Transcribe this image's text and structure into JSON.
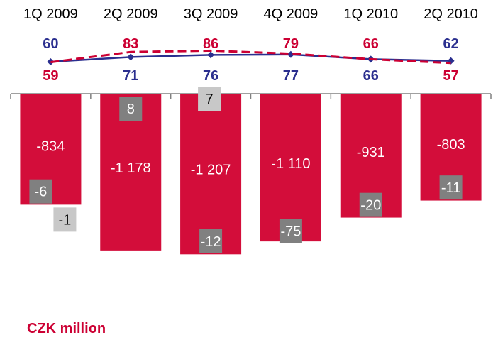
{
  "chart_data": {
    "type": "bar",
    "unit_label": "CZK million",
    "categories": [
      "1Q 2009",
      "2Q 2009",
      "3Q 2009",
      "4Q 2009",
      "1Q 2010",
      "2Q 2010"
    ],
    "main_bars": {
      "values": [
        -834,
        -1178,
        -1207,
        -1110,
        -931,
        -803
      ],
      "labels": [
        "-834",
        "-1 178",
        "-1 207",
        "-1 110",
        "-931",
        "-803"
      ],
      "color": "#d30d3a"
    },
    "small_bars_dark": {
      "values": [
        -6,
        8,
        -12,
        -75,
        -20,
        -11
      ],
      "labels": [
        "-6",
        "8",
        "-12",
        "-75",
        "-20",
        "-11"
      ],
      "color": "#808080"
    },
    "small_bars_light": {
      "values": [
        -1,
        null,
        7,
        null,
        null,
        null
      ],
      "labels": [
        "-1",
        "",
        "7",
        "",
        "",
        ""
      ],
      "color": "#c8c8c8"
    },
    "line_series": [
      {
        "values": [
          60,
          71,
          76,
          77,
          66,
          62
        ],
        "color": "#2b2f8f",
        "style": "solid"
      },
      {
        "values": [
          59,
          83,
          86,
          79,
          66,
          57
        ],
        "color": "#cc0033",
        "style": "dashed"
      }
    ],
    "value_labels_top": [
      "60",
      "83",
      "86",
      "79",
      "66",
      "62"
    ],
    "value_labels_top_colors": [
      "#2b2f8f",
      "#cc0033",
      "#cc0033",
      "#cc0033",
      "#cc0033",
      "#2b2f8f"
    ],
    "value_labels_bottom": [
      "59",
      "71",
      "76",
      "77",
      "66",
      "57"
    ],
    "value_labels_bottom_colors": [
      "#cc0033",
      "#2b2f8f",
      "#2b2f8f",
      "#2b2f8f",
      "#2b2f8f",
      "#cc0033"
    ],
    "ylim": [
      -1300,
      0
    ]
  }
}
